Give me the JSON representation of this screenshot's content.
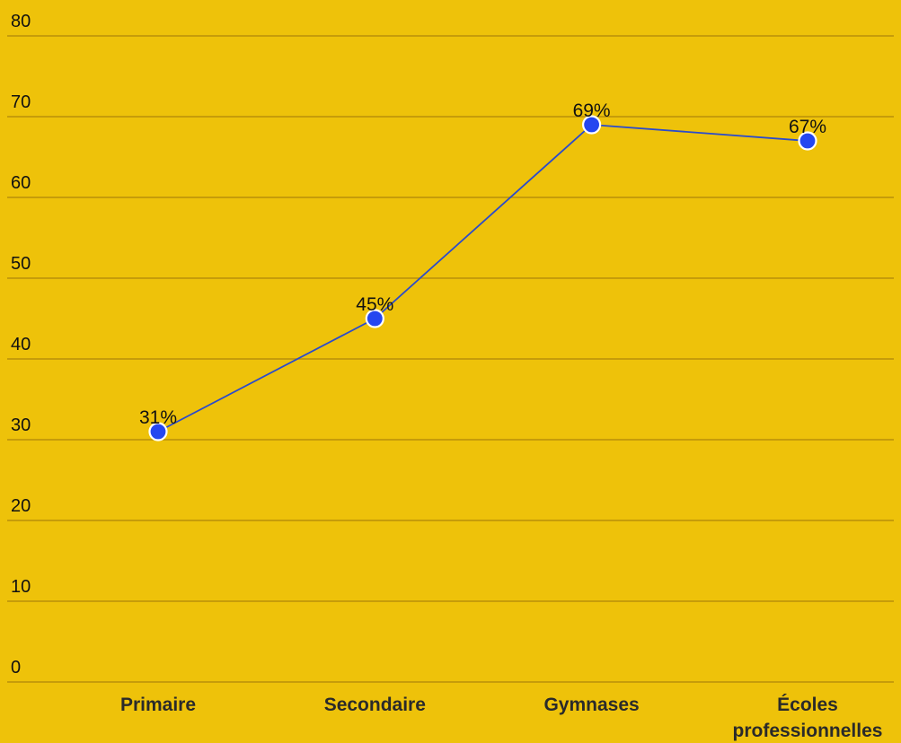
{
  "colors": {
    "background": "#EEC20A",
    "gridline": "#B8900A",
    "line": "#2B4BCC",
    "marker_fill": "#2547F0",
    "marker_stroke": "#FFFFFF"
  },
  "chart_data": {
    "type": "line",
    "title": "",
    "xlabel": "",
    "ylabel": "",
    "categories": [
      "Primaire",
      "Secondaire",
      "Gymnases",
      "Écoles professionnelles"
    ],
    "category_lines": [
      [
        "Primaire"
      ],
      [
        "Secondaire"
      ],
      [
        "Gymnases"
      ],
      [
        "Écoles",
        "professionnelles"
      ]
    ],
    "series": [
      {
        "values": [
          31,
          45,
          69,
          67
        ],
        "labels": [
          "31%",
          "45%",
          "69%",
          "67%"
        ]
      }
    ],
    "ylim": [
      0,
      80
    ],
    "yticks": [
      "0",
      "10",
      "20",
      "30",
      "40",
      "50",
      "60",
      "70",
      "80"
    ],
    "grid": true,
    "legend": "none"
  }
}
